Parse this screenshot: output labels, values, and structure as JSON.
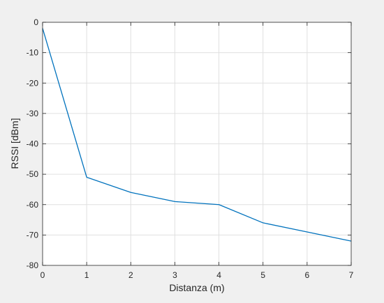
{
  "chart_data": {
    "type": "line",
    "title": "",
    "xlabel": "Distanza (m)",
    "ylabel": "RSSI [dBm]",
    "xlim": [
      0,
      7
    ],
    "ylim": [
      -80,
      0
    ],
    "xticks": [
      0,
      1,
      2,
      3,
      4,
      5,
      6,
      7
    ],
    "yticks": [
      0,
      -10,
      -20,
      -30,
      -40,
      -50,
      -60,
      -70,
      -80
    ],
    "grid": true,
    "legend": "none",
    "series": [
      {
        "color": "#0072bd",
        "x": [
          0,
          1,
          2,
          3,
          4,
          5,
          6,
          7
        ],
        "y": [
          -2,
          -51,
          -56,
          -59,
          -60,
          -66,
          -69,
          -72
        ]
      }
    ]
  },
  "colors": {
    "figure_background": "#f0f0f0",
    "plot_background": "#ffffff",
    "grid": "#e0e0e0",
    "axis": "#262626"
  }
}
